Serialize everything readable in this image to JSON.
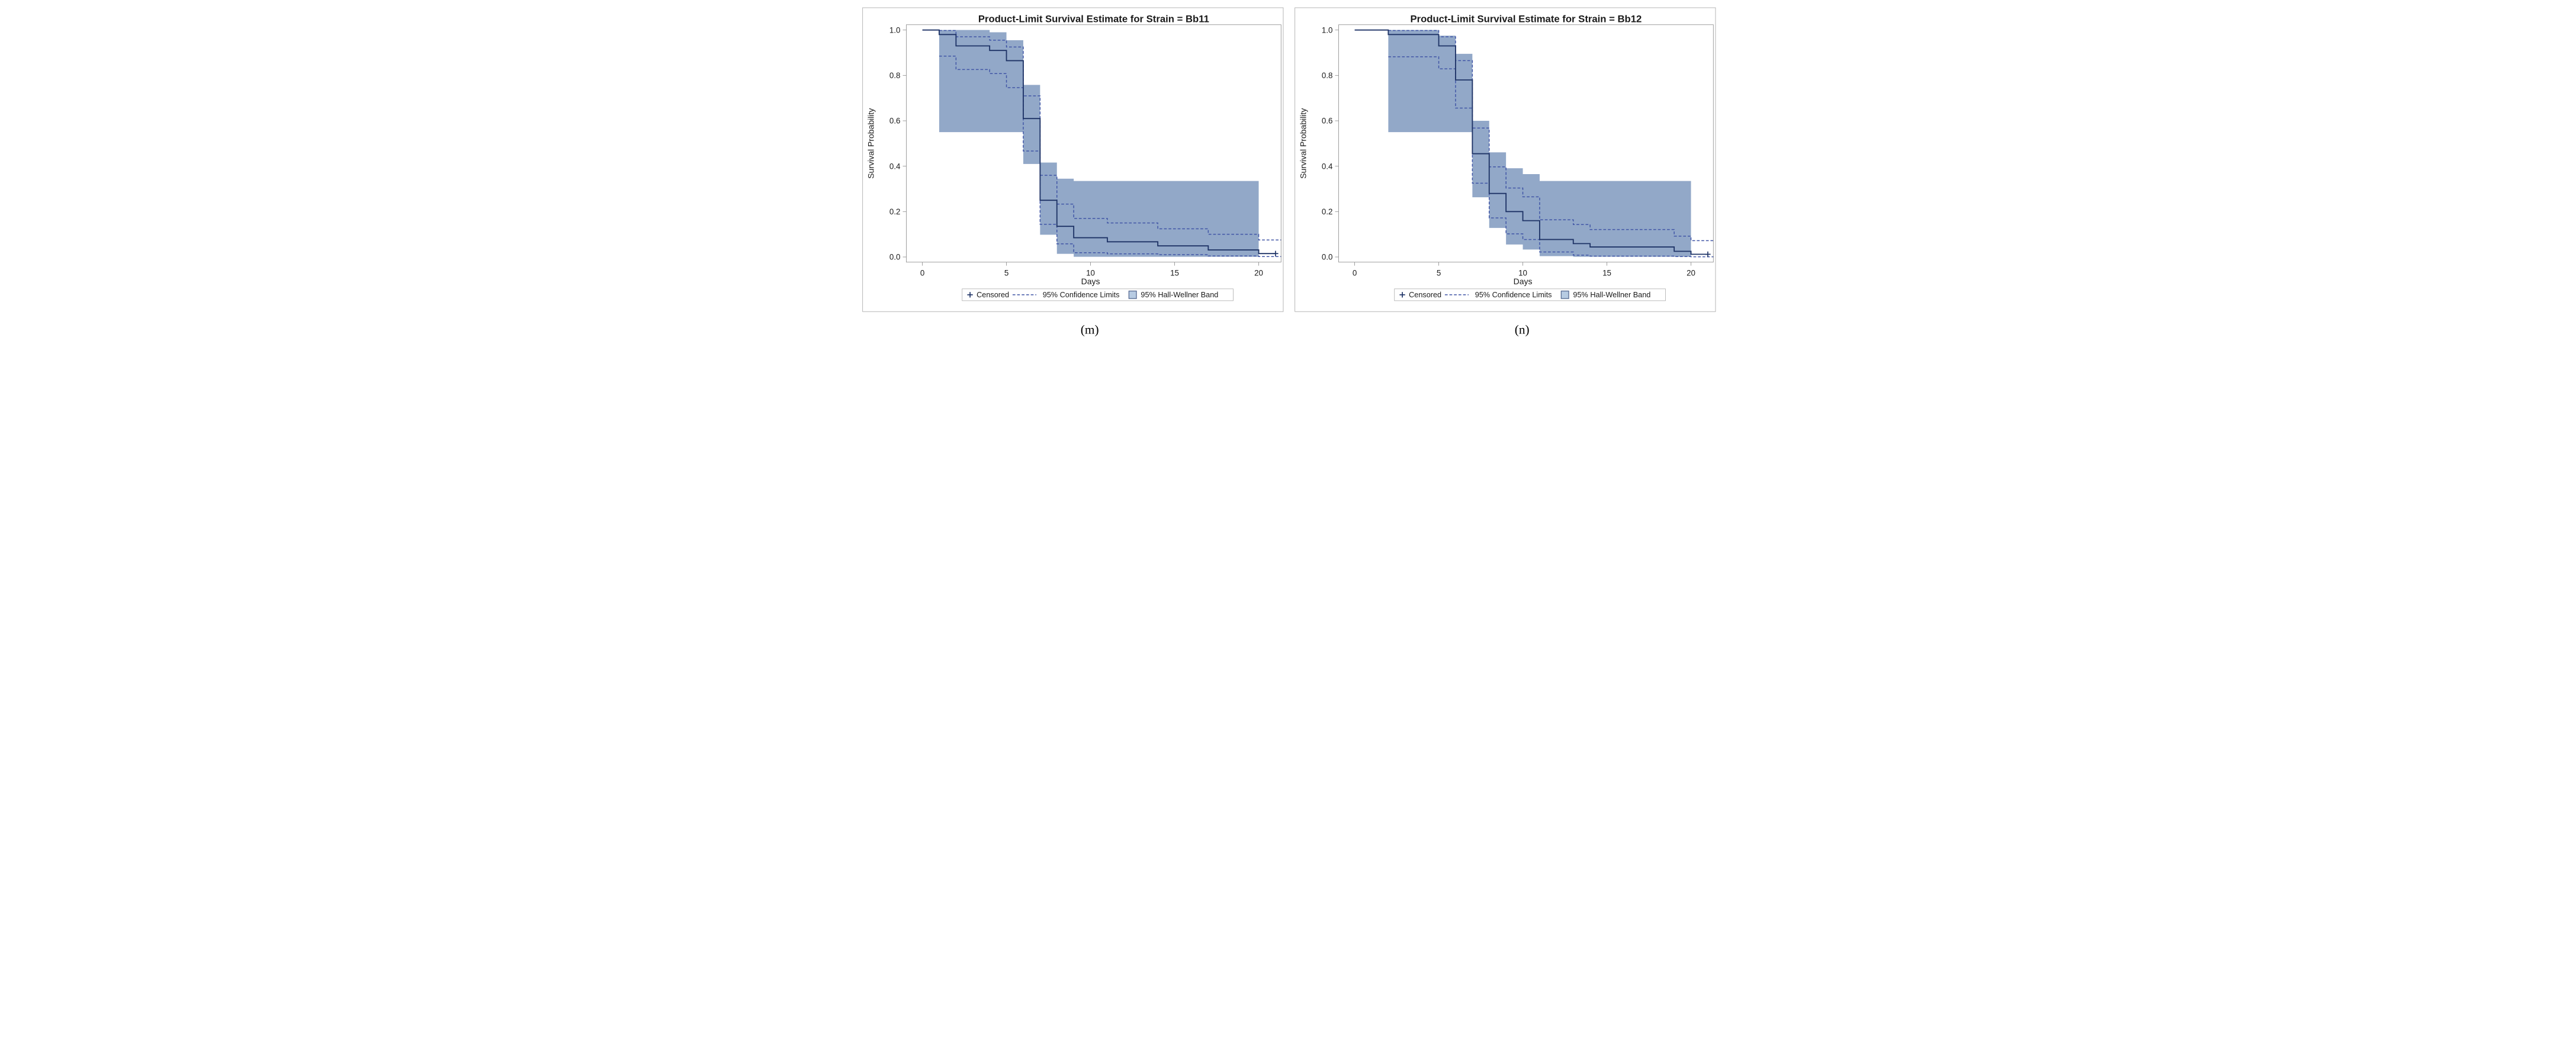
{
  "figure": {
    "background": "#ffffff",
    "caption_left": "(m)",
    "caption_right": "(n)"
  },
  "colors": {
    "survival_line": "#1e3366",
    "ci_line": "#4156a6",
    "band_fill": "#92a8c8",
    "swatch_fill": "#b7cbe2",
    "swatch_border": "#5a6d94",
    "wall_border": "#8c8c8c",
    "frame_border": "#a8a8a8",
    "legend_border": "#b0b0b0",
    "text": "#1a1a1a"
  },
  "chart_data": {
    "type": "km_survival_step",
    "xlabel": "Days",
    "ylabel": "Survival Probability",
    "x_ticks": [
      0,
      5,
      10,
      15,
      20
    ],
    "y_ticks": [
      "1.0",
      "0.8",
      "0.6",
      "0.4",
      "0.2",
      "0.0"
    ],
    "xlim": [
      -1,
      21.4
    ],
    "ylim": [
      0,
      1.05
    ],
    "grid": false,
    "legend_position": "bottom",
    "legend": {
      "censored_marker": "+",
      "censored": "Censored",
      "ci": "95% Confidence Limits",
      "band": "95% Hall-Wellner Band"
    },
    "panels": [
      {
        "id": "Bb11",
        "title": "Product-Limit Survival Estimate for Strain = Bb11",
        "caption": "(m)",
        "end_time": 21,
        "survival": [
          [
            0,
            1.0
          ],
          [
            1,
            0.98
          ],
          [
            2,
            0.93
          ],
          [
            4,
            0.91
          ],
          [
            5,
            0.865
          ],
          [
            6,
            0.61
          ],
          [
            7,
            0.25
          ],
          [
            8,
            0.135
          ],
          [
            9,
            0.085
          ],
          [
            11,
            0.067
          ],
          [
            14,
            0.049
          ],
          [
            17,
            0.031
          ],
          [
            20,
            0.015
          ]
        ],
        "censored": [
          [
            21,
            0.015
          ]
        ],
        "ci_upper": [
          [
            1,
            0.998
          ],
          [
            2,
            0.97
          ],
          [
            4,
            0.955
          ],
          [
            5,
            0.925
          ],
          [
            6,
            0.71
          ],
          [
            7,
            0.36
          ],
          [
            8,
            0.233
          ],
          [
            9,
            0.17
          ],
          [
            11,
            0.15
          ],
          [
            14,
            0.124
          ],
          [
            17,
            0.1
          ],
          [
            20,
            0.075
          ]
        ],
        "ci_lower": [
          [
            1,
            0.885
          ],
          [
            2,
            0.826
          ],
          [
            4,
            0.808
          ],
          [
            5,
            0.746
          ],
          [
            6,
            0.467
          ],
          [
            7,
            0.144
          ],
          [
            8,
            0.058
          ],
          [
            9,
            0.019
          ],
          [
            11,
            0.014
          ],
          [
            14,
            0.0105
          ],
          [
            17,
            0.0045
          ],
          [
            20,
            0.002
          ]
        ],
        "band": [
          [
            1,
            4,
            1.0,
            0.55
          ],
          [
            4,
            5,
            0.99,
            0.55
          ],
          [
            5,
            6,
            0.955,
            0.55
          ],
          [
            6,
            7,
            0.758,
            0.41
          ],
          [
            7,
            8,
            0.416,
            0.098
          ],
          [
            8,
            9,
            0.345,
            0.014
          ],
          [
            9,
            20,
            0.335,
            0.001
          ]
        ]
      },
      {
        "id": "Bb12",
        "title": "Product-Limit Survival Estimate for Strain = Bb12",
        "caption": "(n)",
        "end_time": 21,
        "survival": [
          [
            0,
            1.0
          ],
          [
            2,
            0.98
          ],
          [
            5,
            0.93
          ],
          [
            6,
            0.78
          ],
          [
            7,
            0.455
          ],
          [
            8,
            0.28
          ],
          [
            9,
            0.2
          ],
          [
            10,
            0.16
          ],
          [
            11,
            0.077
          ],
          [
            13,
            0.059
          ],
          [
            14,
            0.044
          ],
          [
            19,
            0.025
          ],
          [
            20,
            0.012
          ]
        ],
        "censored": [
          [
            21,
            0.012
          ]
        ],
        "ci_upper": [
          [
            2,
            0.998
          ],
          [
            5,
            0.97
          ],
          [
            6,
            0.865
          ],
          [
            7,
            0.568
          ],
          [
            8,
            0.397
          ],
          [
            9,
            0.304
          ],
          [
            10,
            0.265
          ],
          [
            11,
            0.164
          ],
          [
            13,
            0.143
          ],
          [
            14,
            0.121
          ],
          [
            19,
            0.092
          ],
          [
            20,
            0.072
          ]
        ],
        "ci_lower": [
          [
            2,
            0.882
          ],
          [
            5,
            0.829
          ],
          [
            6,
            0.656
          ],
          [
            7,
            0.325
          ],
          [
            8,
            0.172
          ],
          [
            9,
            0.102
          ],
          [
            10,
            0.077
          ],
          [
            11,
            0.022
          ],
          [
            13,
            0.008
          ],
          [
            14,
            0.004
          ],
          [
            19,
            0.002
          ],
          [
            20,
            0.001
          ]
        ],
        "band": [
          [
            2,
            5,
            1.0,
            0.55
          ],
          [
            5,
            6,
            0.975,
            0.55
          ],
          [
            6,
            7,
            0.895,
            0.55
          ],
          [
            7,
            8,
            0.6,
            0.263
          ],
          [
            8,
            9,
            0.461,
            0.128
          ],
          [
            9,
            10,
            0.391,
            0.055
          ],
          [
            10,
            11,
            0.365,
            0.033
          ],
          [
            11,
            13,
            0.335,
            0.004
          ],
          [
            13,
            20,
            0.335,
            0.001
          ]
        ]
      }
    ]
  }
}
